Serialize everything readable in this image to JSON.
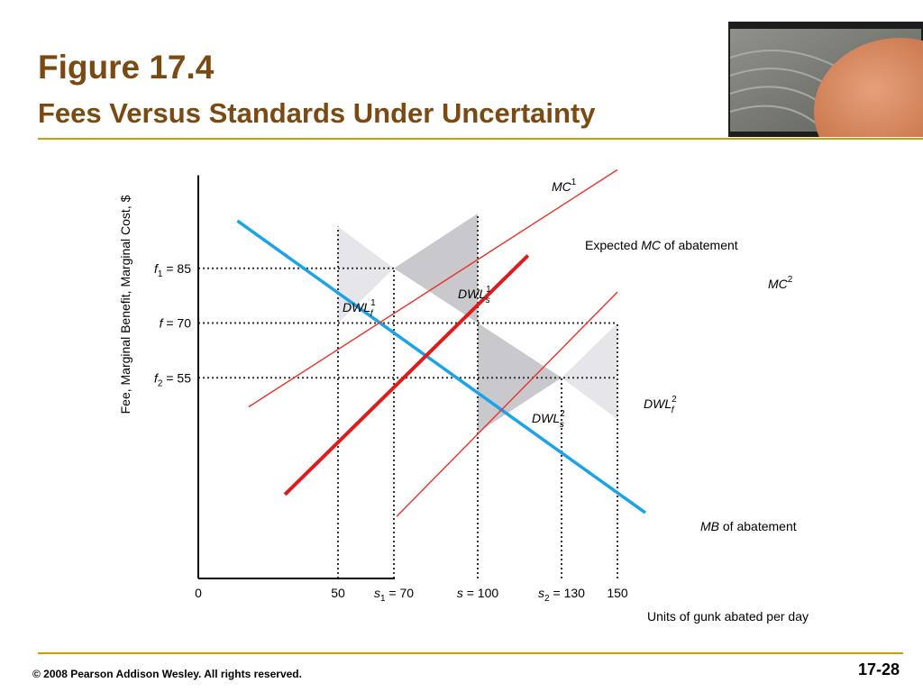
{
  "slide": {
    "title": "Figure 17.4",
    "subtitle": "Fees Versus Standards Under Uncertainty",
    "footer": "© 2008 Pearson Addison Wesley. All rights reserved.",
    "page_number": "17-28",
    "photo": "rock-on-raked-sand"
  },
  "colors": {
    "title": "#7b4a12",
    "rule": "#c8a000",
    "mb_line": "#1aa3e8",
    "expected_mc_line": "#e01b1b",
    "mc_bounds_line": "#e8332a",
    "dwl_light": "#e6e6ea",
    "dwl_dark": "#c9c9cd"
  },
  "chart_data": {
    "type": "line",
    "ylabel": "Fee, Marginal Benefit, Marginal Cost, $",
    "xlabel": "Units of gunk abated per day",
    "xlim": [
      0,
      160
    ],
    "ylim": [
      0,
      120
    ],
    "grid": false,
    "x_ticks": [
      {
        "x": 0,
        "label": "0",
        "guide": false
      },
      {
        "x": 50,
        "label": "50",
        "guide": true
      },
      {
        "x": 70,
        "label": "s1 = 70",
        "guide": true
      },
      {
        "x": 100,
        "label": "s = 100",
        "guide": true
      },
      {
        "x": 130,
        "label": "s2 = 130",
        "guide": true
      },
      {
        "x": 150,
        "label": "150",
        "guide": true
      }
    ],
    "y_ticks": [
      {
        "y": 85,
        "label": "f1 = 85"
      },
      {
        "y": 70,
        "label": "f = 70"
      },
      {
        "y": 55,
        "label": "f2 = 55"
      }
    ],
    "series": [
      {
        "name": "MB of abatement",
        "x": [
          14,
          160
        ],
        "y": [
          98,
          18
        ]
      },
      {
        "name": "Expected MC of abatement",
        "x": [
          31,
          118
        ],
        "y": [
          23,
          88.5
        ]
      },
      {
        "name": "MC1",
        "x": [
          18,
          150
        ],
        "y": [
          47,
          112
        ]
      },
      {
        "name": "MC2",
        "x": [
          71,
          150
        ],
        "y": [
          17,
          78.5
        ]
      }
    ],
    "areas": [
      {
        "name": "DWL_f^1",
        "points": [
          [
            50,
            70
          ],
          [
            50,
            96.4
          ],
          [
            70,
            85
          ]
        ]
      },
      {
        "name": "DWL_s^1",
        "points": [
          [
            70,
            85
          ],
          [
            100,
            70
          ],
          [
            100,
            100
          ]
        ]
      },
      {
        "name": "DWL_s^2",
        "points": [
          [
            100,
            70
          ],
          [
            100,
            40
          ],
          [
            130,
            55
          ]
        ]
      },
      {
        "name": "DWL_f^2",
        "points": [
          [
            130,
            55
          ],
          [
            150,
            70
          ],
          [
            150,
            43.6
          ]
        ]
      }
    ],
    "annotations": {
      "dwl_f1": "DWL_f^1",
      "dwl_s1": "DWL_s^1",
      "dwl_s2": "DWL_s^2",
      "dwl_f2": "DWL_f^2",
      "mc1_label": "MC^1",
      "mc2_label": "MC^2",
      "expected_prefix": "Expected ",
      "expected_mc": "MC",
      "expected_suffix": " of abatement",
      "mb_mb": "MB",
      "mb_suffix": " of abatement"
    }
  }
}
